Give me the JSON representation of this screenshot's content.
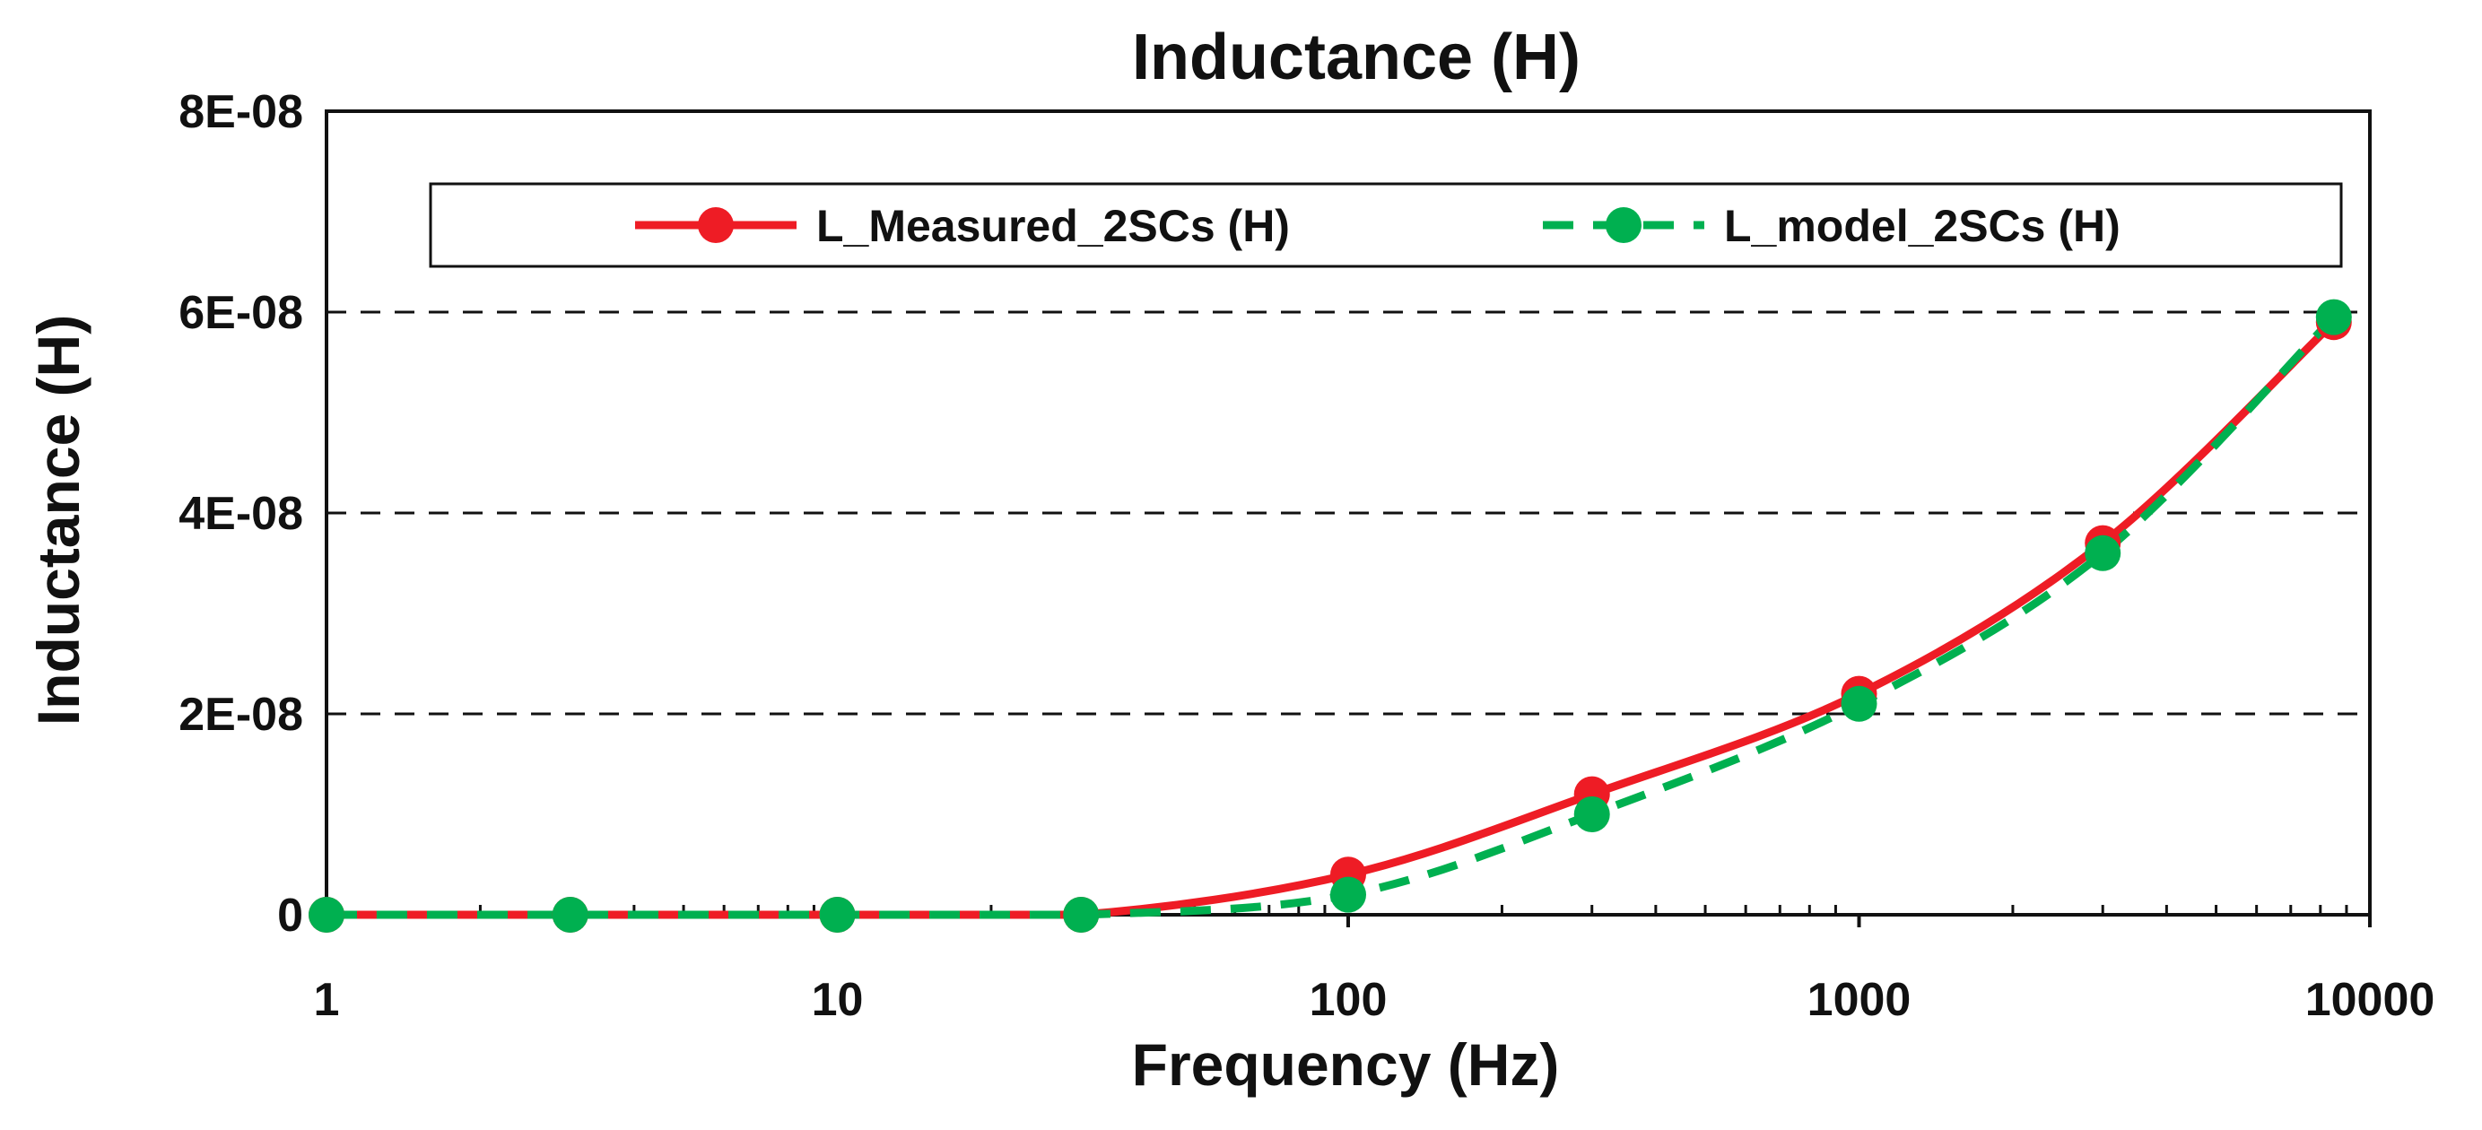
{
  "chart_data": {
    "type": "line",
    "title": "Inductance (H)",
    "xlabel": "Frequency (Hz)",
    "ylabel": "Inductance (H)",
    "x_scale": "log",
    "xlim": [
      1,
      10000
    ],
    "ylim": [
      0,
      8e-08
    ],
    "x_ticks": [
      1,
      10,
      100,
      1000,
      10000
    ],
    "x_tick_labels": [
      "1",
      "10",
      "100",
      "1000",
      "10000"
    ],
    "y_ticks": [
      0,
      2e-08,
      4e-08,
      6e-08,
      8e-08
    ],
    "y_tick_labels": [
      "0",
      "2E-08",
      "4E-08",
      "6E-08",
      "8E-08"
    ],
    "grid": "horizontal-dashed",
    "legend_position": "top",
    "series": [
      {
        "name": "L_Measured_2SCs (H)",
        "color": "#ee1c25",
        "line_style": "solid",
        "marker": "circle",
        "x": [
          1,
          3,
          10,
          30,
          100,
          300,
          1000,
          3000,
          8500
        ],
        "y": [
          0,
          0,
          0,
          0,
          4e-09,
          1.2e-08,
          2.2e-08,
          3.7e-08,
          5.9e-08
        ]
      },
      {
        "name": "L_model_2SCs (H)",
        "color": "#00b050",
        "line_style": "dashed",
        "marker": "circle",
        "x": [
          1,
          3,
          10,
          30,
          100,
          300,
          1000,
          3000,
          8500
        ],
        "y": [
          0,
          0,
          0,
          0,
          2e-09,
          1e-08,
          2.1e-08,
          3.6e-08,
          5.95e-08
        ]
      }
    ]
  }
}
